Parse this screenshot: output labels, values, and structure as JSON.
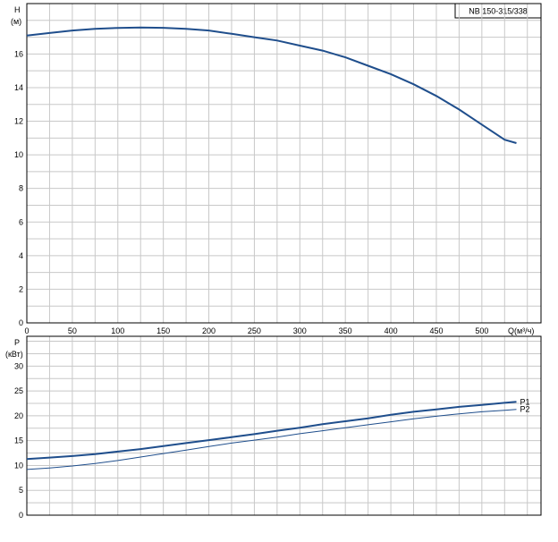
{
  "model_label": "NB 150-315/338",
  "colors": {
    "curve": "#1f4e8c",
    "grid": "#c8c8c8",
    "axis": "#000000"
  },
  "chart_data": [
    {
      "type": "line",
      "title": "",
      "ylabel_line1": "H",
      "ylabel_line2": "(м)",
      "xlabel": "Q(м³/ч)",
      "xlim": [
        0,
        565
      ],
      "ylim": [
        0,
        19
      ],
      "xticks": [
        0,
        50,
        100,
        150,
        200,
        250,
        300,
        350,
        400,
        450,
        500
      ],
      "yticks": [
        0,
        2,
        4,
        6,
        8,
        10,
        12,
        14,
        16
      ],
      "grid": true,
      "series": [
        {
          "name": "",
          "x": [
            0,
            25,
            50,
            75,
            100,
            125,
            150,
            175,
            200,
            225,
            250,
            275,
            300,
            325,
            350,
            375,
            400,
            425,
            450,
            475,
            500,
            525,
            538
          ],
          "y": [
            17.1,
            17.25,
            17.4,
            17.5,
            17.55,
            17.58,
            17.56,
            17.5,
            17.4,
            17.2,
            17.0,
            16.8,
            16.5,
            16.2,
            15.8,
            15.3,
            14.8,
            14.2,
            13.5,
            12.7,
            11.8,
            10.9,
            10.7
          ]
        }
      ]
    },
    {
      "type": "line",
      "title": "",
      "ylabel_line1": "P",
      "ylabel_line2": "(кВт)",
      "xlabel": "",
      "xlim": [
        0,
        565
      ],
      "ylim": [
        0,
        36
      ],
      "yticks": [
        0,
        5,
        10,
        15,
        20,
        25,
        30
      ],
      "grid": true,
      "series": [
        {
          "name": "P1",
          "x": [
            0,
            25,
            50,
            75,
            100,
            125,
            150,
            175,
            200,
            225,
            250,
            275,
            300,
            325,
            350,
            375,
            400,
            425,
            450,
            475,
            500,
            525,
            538
          ],
          "y": [
            11.3,
            11.6,
            11.9,
            12.3,
            12.8,
            13.3,
            13.9,
            14.5,
            15.1,
            15.7,
            16.3,
            17.0,
            17.6,
            18.3,
            18.9,
            19.5,
            20.2,
            20.8,
            21.3,
            21.8,
            22.2,
            22.6,
            22.8
          ]
        },
        {
          "name": "P2",
          "x": [
            0,
            25,
            50,
            75,
            100,
            125,
            150,
            175,
            200,
            225,
            250,
            275,
            300,
            325,
            350,
            375,
            400,
            425,
            450,
            475,
            500,
            525,
            538
          ],
          "y": [
            9.2,
            9.5,
            9.9,
            10.4,
            11.0,
            11.7,
            12.4,
            13.1,
            13.8,
            14.5,
            15.1,
            15.7,
            16.4,
            17.0,
            17.6,
            18.2,
            18.8,
            19.4,
            19.9,
            20.4,
            20.8,
            21.1,
            21.3
          ]
        }
      ]
    }
  ]
}
